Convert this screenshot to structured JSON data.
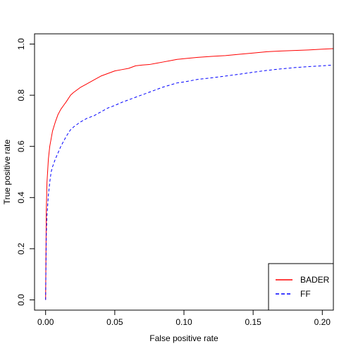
{
  "chart_data": {
    "type": "line",
    "title": "",
    "xlabel": "False positive rate",
    "ylabel": "True positive rate",
    "xlim": [
      -0.008,
      0.208
    ],
    "ylim": [
      -0.04,
      1.04
    ],
    "xticks": [
      0.0,
      0.05,
      0.1,
      0.15,
      0.2
    ],
    "xtick_labels": [
      "0.00",
      "0.05",
      "0.10",
      "0.15",
      "0.20"
    ],
    "yticks": [
      0.0,
      0.2,
      0.4,
      0.6,
      0.8,
      1.0
    ],
    "ytick_labels": [
      "0.0",
      "0.2",
      "0.4",
      "0.6",
      "0.8",
      "1.0"
    ],
    "grid": false,
    "legend_position": "bottom-right",
    "series": [
      {
        "name": "BADER",
        "color": "#ff0000",
        "line_style": "solid",
        "x": [
          0.0,
          0.0005,
          0.001,
          0.002,
          0.003,
          0.004,
          0.005,
          0.007,
          0.009,
          0.011,
          0.013,
          0.015,
          0.018,
          0.02,
          0.025,
          0.03,
          0.035,
          0.04,
          0.045,
          0.05,
          0.055,
          0.06,
          0.065,
          0.07,
          0.075,
          0.08,
          0.085,
          0.09,
          0.095,
          0.1,
          0.11,
          0.12,
          0.13,
          0.14,
          0.15,
          0.16,
          0.17,
          0.18,
          0.19,
          0.2,
          0.208
        ],
        "y": [
          0.0,
          0.35,
          0.46,
          0.55,
          0.6,
          0.63,
          0.66,
          0.695,
          0.725,
          0.745,
          0.76,
          0.775,
          0.8,
          0.81,
          0.83,
          0.845,
          0.86,
          0.875,
          0.885,
          0.895,
          0.9,
          0.905,
          0.915,
          0.918,
          0.92,
          0.925,
          0.93,
          0.935,
          0.94,
          0.943,
          0.948,
          0.952,
          0.955,
          0.96,
          0.965,
          0.97,
          0.973,
          0.975,
          0.977,
          0.98,
          0.982
        ]
      },
      {
        "name": "FF",
        "color": "#0000ff",
        "line_style": "dashed",
        "x": [
          0.0,
          0.0005,
          0.001,
          0.002,
          0.003,
          0.004,
          0.005,
          0.007,
          0.009,
          0.011,
          0.013,
          0.015,
          0.018,
          0.02,
          0.025,
          0.03,
          0.035,
          0.04,
          0.045,
          0.05,
          0.055,
          0.06,
          0.065,
          0.07,
          0.075,
          0.08,
          0.085,
          0.09,
          0.095,
          0.1,
          0.11,
          0.12,
          0.13,
          0.14,
          0.15,
          0.16,
          0.17,
          0.18,
          0.19,
          0.2,
          0.208
        ],
        "y": [
          0.0,
          0.25,
          0.33,
          0.41,
          0.46,
          0.5,
          0.52,
          0.55,
          0.575,
          0.6,
          0.62,
          0.64,
          0.665,
          0.675,
          0.695,
          0.71,
          0.72,
          0.735,
          0.75,
          0.76,
          0.772,
          0.782,
          0.792,
          0.802,
          0.812,
          0.822,
          0.832,
          0.84,
          0.848,
          0.852,
          0.862,
          0.868,
          0.875,
          0.882,
          0.89,
          0.897,
          0.903,
          0.908,
          0.912,
          0.915,
          0.918
        ]
      }
    ]
  }
}
